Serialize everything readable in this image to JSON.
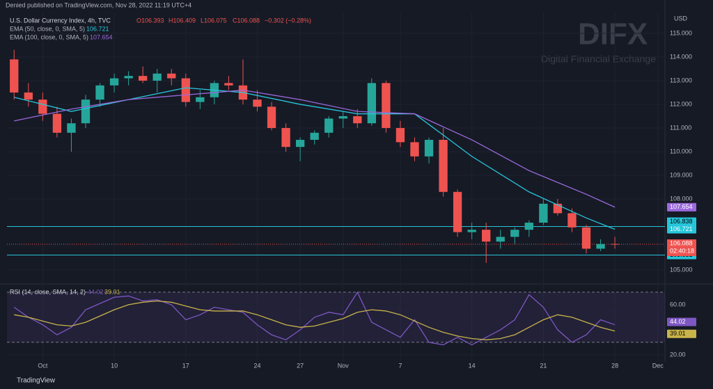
{
  "header": {
    "published": "Denied published on TradingView.com, Nov 28, 2022 11:19 UTC+4",
    "currency": "USD"
  },
  "watermark": {
    "brand": "DIFX",
    "tagline": "Digital Financial Exchange"
  },
  "footer": {
    "brand": "TradingView"
  },
  "chart_data": [
    {
      "type": "candlestick",
      "symbol": "U.S. Dollar Currency Index, 4h, TVC",
      "ohlc": [
        "O106.393",
        "H106.409",
        "L106.075",
        "C106.088",
        "−0.302 (−0.28%)"
      ],
      "up_color": "#26a69a",
      "down_color": "#ef5350",
      "x": [
        -2,
        -1,
        0,
        1,
        2,
        3,
        4,
        5,
        6,
        7,
        8,
        9,
        10,
        11,
        12,
        13,
        14,
        15,
        16,
        17,
        18,
        19,
        20,
        21,
        22,
        23,
        24,
        25,
        26,
        27,
        28,
        29,
        30,
        31,
        32,
        33,
        34,
        35,
        36,
        37,
        38,
        39,
        40
      ],
      "open": [
        113.9,
        112.5,
        112.2,
        111.6,
        110.8,
        111.2,
        112.2,
        112.8,
        113.1,
        113.2,
        113.0,
        113.3,
        113.1,
        112.1,
        112.3,
        112.9,
        112.8,
        112.2,
        111.9,
        111.0,
        110.2,
        110.5,
        110.8,
        111.4,
        111.5,
        111.2,
        112.9,
        111.0,
        110.4,
        109.8,
        110.5,
        108.3,
        106.6,
        106.7,
        106.2,
        106.4,
        106.7,
        107.0,
        107.8,
        107.4,
        106.8,
        105.9,
        106.1
      ],
      "high": [
        114.3,
        112.9,
        112.5,
        111.9,
        111.4,
        112.4,
        112.9,
        113.3,
        113.4,
        113.6,
        113.5,
        113.5,
        113.3,
        112.6,
        113.0,
        113.2,
        113.9,
        112.6,
        112.1,
        111.2,
        110.6,
        110.9,
        111.5,
        111.7,
        111.8,
        113.1,
        113.0,
        111.3,
        110.6,
        110.6,
        111.0,
        108.4,
        107.0,
        107.0,
        106.7,
        106.8,
        107.1,
        108.0,
        108.0,
        107.6,
        106.9,
        106.3,
        106.4
      ],
      "low": [
        112.2,
        111.9,
        111.3,
        110.6,
        110.0,
        111.0,
        111.9,
        112.5,
        112.8,
        112.9,
        112.5,
        112.8,
        111.9,
        111.8,
        112.0,
        112.6,
        112.0,
        111.7,
        110.9,
        110.0,
        109.6,
        110.3,
        110.6,
        111.0,
        111.0,
        111.1,
        110.8,
        110.2,
        109.6,
        109.5,
        108.1,
        106.4,
        106.3,
        105.3,
        105.9,
        106.1,
        106.4,
        106.9,
        107.3,
        106.6,
        105.7,
        105.8,
        105.9
      ],
      "close": [
        112.5,
        112.2,
        111.6,
        110.8,
        111.2,
        112.2,
        112.8,
        113.1,
        113.2,
        113.0,
        113.3,
        113.1,
        112.1,
        112.3,
        112.9,
        112.8,
        112.2,
        111.9,
        111.0,
        110.2,
        110.5,
        110.8,
        111.4,
        111.5,
        111.2,
        112.9,
        111.0,
        110.4,
        109.8,
        110.5,
        108.3,
        106.6,
        106.7,
        106.2,
        106.4,
        106.7,
        107.0,
        107.8,
        107.4,
        106.8,
        105.9,
        106.1,
        106.088
      ],
      "series": [
        {
          "name": "EMA (50, close, 0, SMA, 5)",
          "value_label": "106.721",
          "color": "#26c6da",
          "x": [
            -2,
            2,
            6,
            10,
            14,
            18,
            22,
            26,
            30,
            34,
            38,
            40
          ],
          "values": [
            112.3,
            111.7,
            112.2,
            112.7,
            112.5,
            112.0,
            111.6,
            111.6,
            109.8,
            108.3,
            107.2,
            106.721
          ]
        },
        {
          "name": "EMA (100, close, 0, SMA, 5)",
          "value_label": "107.654",
          "color": "#9c6ade",
          "x": [
            -2,
            2,
            6,
            10,
            14,
            18,
            22,
            26,
            30,
            34,
            38,
            40
          ],
          "values": [
            111.3,
            111.8,
            112.2,
            112.4,
            112.6,
            112.2,
            111.7,
            111.6,
            110.5,
            109.2,
            108.2,
            107.654
          ]
        }
      ],
      "levels": [
        {
          "value": 106.838,
          "label": "106.838",
          "color": "#26c6da"
        },
        {
          "value": 105.631,
          "label": "105.631",
          "color": "#26c6da"
        }
      ],
      "last_price": {
        "value": 106.088,
        "label": "106.088",
        "countdown": "02:40:18",
        "color": "#ef5350"
      },
      "xlim": [
        -2.5,
        43.5
      ],
      "xticks": [
        {
          "value": 0,
          "label": "Oct"
        },
        {
          "value": 5,
          "label": "10"
        },
        {
          "value": 10,
          "label": "17"
        },
        {
          "value": 15,
          "label": "24"
        },
        {
          "value": 18,
          "label": "27"
        },
        {
          "value": 21,
          "label": "Nov"
        },
        {
          "value": 25,
          "label": "7"
        },
        {
          "value": 30,
          "label": "14"
        },
        {
          "value": 35,
          "label": "21"
        },
        {
          "value": 40,
          "label": "28"
        },
        {
          "value": 43,
          "label": "Dec"
        }
      ],
      "ylim": [
        104.5,
        115.88
      ],
      "yticks": [
        {
          "value": 115,
          "label": "115.000"
        },
        {
          "value": 114,
          "label": "114.000"
        },
        {
          "value": 113,
          "label": "113.000"
        },
        {
          "value": 112,
          "label": "112.000"
        },
        {
          "value": 111,
          "label": "111.000"
        },
        {
          "value": 110,
          "label": "110.000"
        },
        {
          "value": 109,
          "label": "109.000"
        },
        {
          "value": 108,
          "label": "108.000"
        },
        {
          "value": 105,
          "label": "105.000"
        }
      ]
    },
    {
      "type": "line",
      "title": "RSI (14, close, SMA, 14, 2)",
      "x": [
        -2,
        -1,
        0,
        1,
        2,
        3,
        4,
        5,
        6,
        7,
        8,
        9,
        10,
        11,
        12,
        13,
        14,
        15,
        16,
        17,
        18,
        19,
        20,
        21,
        22,
        23,
        24,
        25,
        26,
        27,
        28,
        29,
        30,
        31,
        32,
        33,
        34,
        35,
        36,
        37,
        38,
        39,
        40
      ],
      "series": [
        {
          "name": "RSI",
          "value_label": "44.02",
          "color": "#7e57c2",
          "values": [
            58,
            50,
            44,
            36,
            42,
            56,
            61,
            66,
            67,
            63,
            64,
            60,
            48,
            52,
            58,
            56,
            54,
            44,
            36,
            32,
            40,
            50,
            54,
            52,
            70,
            46,
            40,
            34,
            48,
            30,
            28,
            34,
            28,
            34,
            40,
            48,
            68,
            58,
            40,
            30,
            36,
            48,
            44.02
          ]
        },
        {
          "name": "SMA",
          "value_label": "39.01",
          "color": "#c9b44a",
          "values": [
            52,
            50,
            47,
            44,
            43,
            46,
            51,
            56,
            60,
            62,
            63,
            62,
            59,
            56,
            55,
            55,
            55,
            52,
            48,
            44,
            42,
            43,
            46,
            49,
            54,
            56,
            55,
            52,
            47,
            42,
            38,
            35,
            33,
            32,
            33,
            36,
            42,
            48,
            52,
            50,
            46,
            42,
            39.01
          ]
        }
      ],
      "bands": [
        70,
        30
      ],
      "xlim": [
        -2.5,
        43.5
      ],
      "ylim": [
        14.4,
        74.4
      ],
      "yticks": [
        {
          "value": 60,
          "label": "60.00"
        },
        {
          "value": 20,
          "label": "20.00"
        }
      ]
    }
  ]
}
